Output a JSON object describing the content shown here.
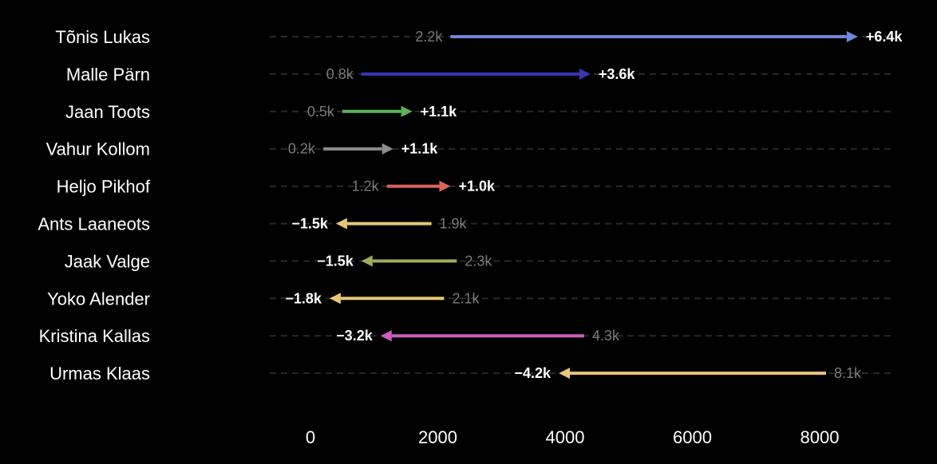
{
  "chart_data": {
    "type": "arrow",
    "xlim": [
      0,
      9500
    ],
    "xticks": [
      0,
      2000,
      4000,
      6000,
      8000
    ],
    "xtick_labels": [
      "0",
      "2000",
      "4000",
      "6000",
      "8000"
    ],
    "grid": false,
    "rows": [
      {
        "name": "Tõnis Lukas",
        "start": 2200,
        "end": 8600,
        "start_label": "2.2k",
        "delta_label": "+6.4k",
        "color": "#6f86d9"
      },
      {
        "name": "Malle Pärn",
        "start": 800,
        "end": 4400,
        "start_label": "0.8k",
        "delta_label": "+3.6k",
        "color": "#3a35b5"
      },
      {
        "name": "Jaan Toots",
        "start": 500,
        "end": 1600,
        "start_label": "0.5k",
        "delta_label": "+1.1k",
        "color": "#5fb05a"
      },
      {
        "name": "Vahur Kollom",
        "start": 200,
        "end": 1300,
        "start_label": "0.2k",
        "delta_label": "+1.1k",
        "color": "#8c8c8c"
      },
      {
        "name": "Heljo Pikhof",
        "start": 1200,
        "end": 2200,
        "start_label": "1.2k",
        "delta_label": "+1.0k",
        "color": "#d9655e"
      },
      {
        "name": "Ants Laaneots",
        "start": 1900,
        "end": 400,
        "start_label": "1.9k",
        "delta_label": "−1.5k",
        "color": "#e6c77a"
      },
      {
        "name": "Jaak Valge",
        "start": 2300,
        "end": 800,
        "start_label": "2.3k",
        "delta_label": "−1.5k",
        "color": "#a2ab5c"
      },
      {
        "name": "Yoko Alender",
        "start": 2100,
        "end": 300,
        "start_label": "2.1k",
        "delta_label": "−1.8k",
        "color": "#e6c77a"
      },
      {
        "name": "Kristina Kallas",
        "start": 4300,
        "end": 1100,
        "start_label": "4.3k",
        "delta_label": "−3.2k",
        "color": "#cc5fc0"
      },
      {
        "name": "Urmas Klaas",
        "start": 8100,
        "end": 3900,
        "start_label": "8.1k",
        "delta_label": "−4.2k",
        "color": "#e6c77a"
      }
    ]
  }
}
